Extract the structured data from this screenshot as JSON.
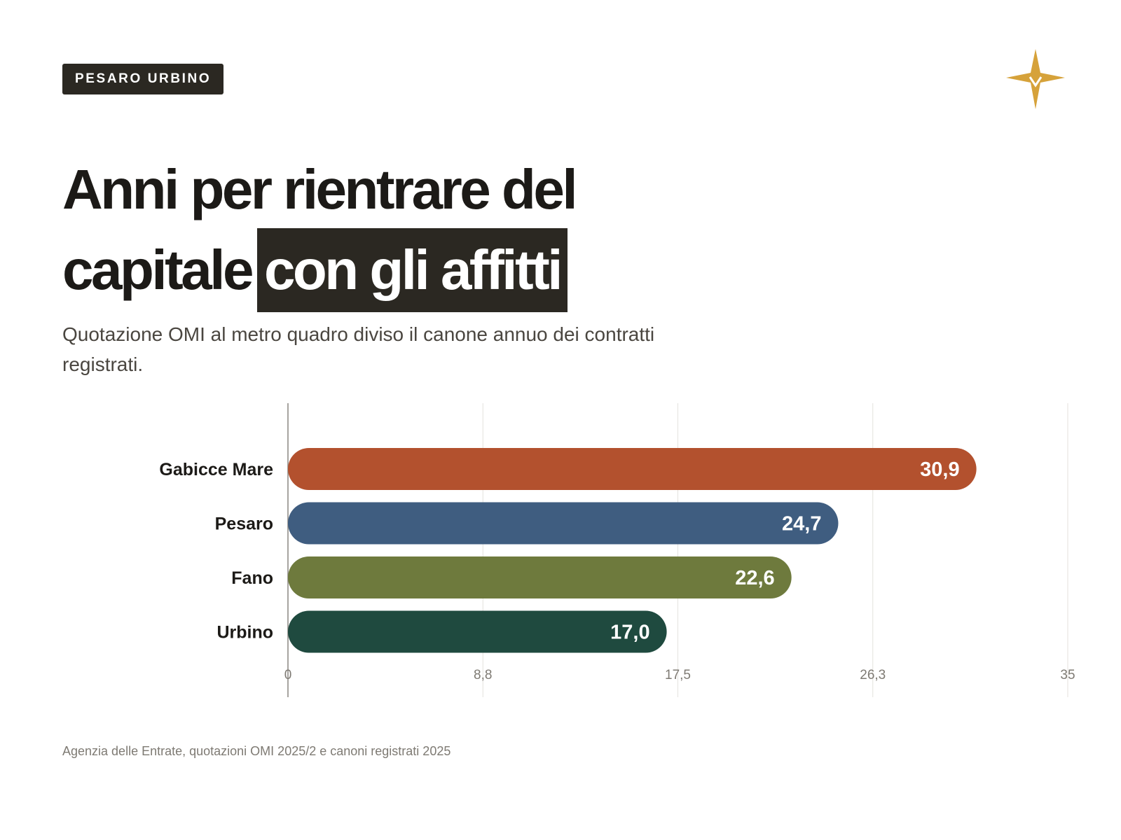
{
  "tag": "PESARO URBINO",
  "headline": {
    "part1": "Anni per rientrare del",
    "part2": "capitale",
    "highlight": "con gli affitti"
  },
  "subtitle": "Quotazione OMI al metro quadro diviso il canone annuo dei contratti registrati.",
  "source": "Agenzia delle Entrate, quotazioni OMI 2025/2 e canoni registrati 2025",
  "logo": {
    "icon": "four-point-star-icon",
    "color": "#d6a23a"
  },
  "chart_data": {
    "type": "bar",
    "orientation": "horizontal",
    "categories": [
      "Gabicce Mare",
      "Pesaro",
      "Fano",
      "Urbino"
    ],
    "values": [
      30.9,
      24.7,
      22.6,
      17.0
    ],
    "value_labels": [
      "30,9",
      "24,7",
      "22,6",
      "17,0"
    ],
    "colors": [
      "#b3512e",
      "#3f5d80",
      "#6e7a3d",
      "#1f4a3f"
    ],
    "xlim": [
      0,
      35
    ],
    "xticks": [
      0,
      8.75,
      17.5,
      26.25,
      35
    ],
    "xtick_labels": [
      "0",
      "8,8",
      "17,5",
      "26,3",
      "35"
    ],
    "grid": true,
    "legend": "none"
  }
}
